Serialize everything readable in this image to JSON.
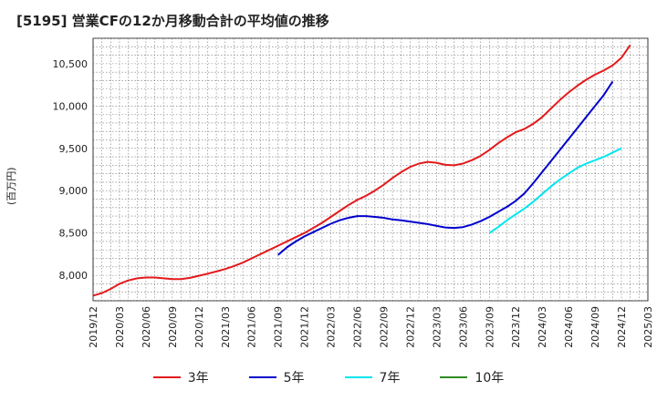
{
  "chart_data": {
    "type": "line",
    "title": "[5195]  営業CFの12か月移動合計の平均値の推移",
    "ylabel": "(百万円)",
    "xlabel": "",
    "ylim": [
      7700,
      10800
    ],
    "y_ticks": [
      "8,000",
      "8,500",
      "9,000",
      "9,500",
      "10,000",
      "10,500"
    ],
    "y_tick_values": [
      8000,
      8500,
      9000,
      9500,
      10000,
      10500
    ],
    "x_ticks": [
      "2019/12",
      "2020/03",
      "2020/06",
      "2020/09",
      "2020/12",
      "2021/03",
      "2021/06",
      "2021/09",
      "2021/12",
      "2022/03",
      "2022/06",
      "2022/09",
      "2022/12",
      "2023/03",
      "2023/06",
      "2023/09",
      "2023/12",
      "2024/03",
      "2024/06",
      "2024/09",
      "2024/12",
      "2025/03"
    ],
    "grid": true,
    "legend_position": "bottom",
    "series": [
      {
        "name": "3年",
        "color": "#e31a1c",
        "start_index": 0,
        "values": [
          7760,
          7790,
          7840,
          7900,
          7940,
          7965,
          7975,
          7975,
          7965,
          7955,
          7955,
          7970,
          7995,
          8020,
          8045,
          8075,
          8110,
          8150,
          8200,
          8250,
          8300,
          8350,
          8400,
          8450,
          8500,
          8560,
          8620,
          8690,
          8760,
          8830,
          8890,
          8940,
          9000,
          9070,
          9150,
          9220,
          9280,
          9320,
          9340,
          9330,
          9305,
          9300,
          9320,
          9360,
          9410,
          9480,
          9560,
          9630,
          9690,
          9730,
          9790,
          9870,
          9970,
          10070,
          10160,
          10240,
          10310,
          10370,
          10420,
          10480,
          10570,
          10720
        ]
      },
      {
        "name": "5年",
        "color": "#0000cc",
        "start_index": 21,
        "values": [
          8240,
          8330,
          8400,
          8460,
          8510,
          8560,
          8610,
          8650,
          8680,
          8700,
          8700,
          8690,
          8680,
          8660,
          8650,
          8635,
          8620,
          8605,
          8585,
          8565,
          8560,
          8570,
          8600,
          8640,
          8690,
          8750,
          8810,
          8880,
          8970,
          9090,
          9220,
          9350,
          9480,
          9610,
          9740,
          9870,
          10000,
          10130,
          10290
        ]
      },
      {
        "name": "7年",
        "color": "#00e5ee",
        "start_index": 45,
        "values": [
          8500,
          8570,
          8650,
          8720,
          8790,
          8870,
          8960,
          9050,
          9130,
          9200,
          9270,
          9320,
          9360,
          9400,
          9450,
          9500
        ]
      },
      {
        "name": "10年",
        "color": "#2e8b22",
        "start_index": 0,
        "values": []
      }
    ]
  }
}
